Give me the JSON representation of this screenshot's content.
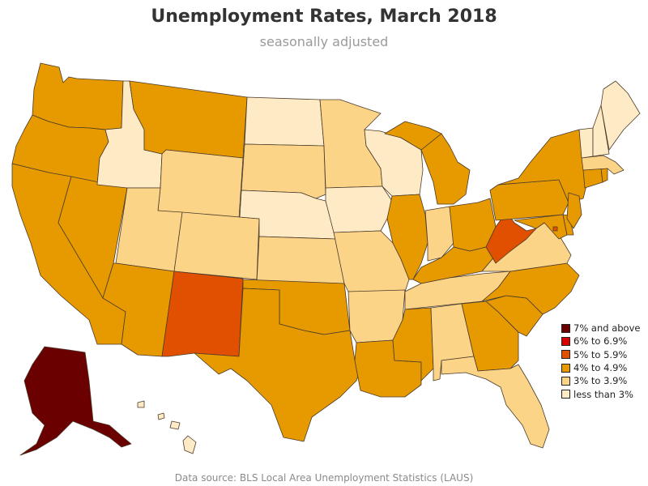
{
  "header": {
    "title": "Unemployment Rates, March 2018",
    "subtitle": "seasonally adjusted"
  },
  "footer": {
    "source": "Data source: BLS Local Area Unemployment Statistics (LAUS)"
  },
  "legend": {
    "items": [
      {
        "label": "7% and above",
        "color": "#6b0000"
      },
      {
        "label": "6% to 6.9%",
        "color": "#d80000"
      },
      {
        "label": "5% to 5.9%",
        "color": "#e05000"
      },
      {
        "label": "4% to 4.9%",
        "color": "#e69a00"
      },
      {
        "label": "3% to 3.9%",
        "color": "#fcd488"
      },
      {
        "label": "less than 3%",
        "color": "#feeac4"
      }
    ]
  },
  "map": {
    "states": [
      {
        "name": "Washington",
        "class": "4% to 4.9%"
      },
      {
        "name": "Oregon",
        "class": "4% to 4.9%"
      },
      {
        "name": "California",
        "class": "4% to 4.9%"
      },
      {
        "name": "Nevada",
        "class": "4% to 4.9%"
      },
      {
        "name": "Idaho",
        "class": "less than 3%"
      },
      {
        "name": "Montana",
        "class": "4% to 4.9%"
      },
      {
        "name": "Wyoming",
        "class": "3% to 3.9%"
      },
      {
        "name": "Utah",
        "class": "3% to 3.9%"
      },
      {
        "name": "Arizona",
        "class": "4% to 4.9%"
      },
      {
        "name": "Colorado",
        "class": "3% to 3.9%"
      },
      {
        "name": "New Mexico",
        "class": "5% to 5.9%"
      },
      {
        "name": "North Dakota",
        "class": "less than 3%"
      },
      {
        "name": "South Dakota",
        "class": "3% to 3.9%"
      },
      {
        "name": "Nebraska",
        "class": "less than 3%"
      },
      {
        "name": "Kansas",
        "class": "3% to 3.9%"
      },
      {
        "name": "Oklahoma",
        "class": "4% to 4.9%"
      },
      {
        "name": "Texas",
        "class": "4% to 4.9%"
      },
      {
        "name": "Minnesota",
        "class": "3% to 3.9%"
      },
      {
        "name": "Iowa",
        "class": "less than 3%"
      },
      {
        "name": "Missouri",
        "class": "3% to 3.9%"
      },
      {
        "name": "Arkansas",
        "class": "3% to 3.9%"
      },
      {
        "name": "Louisiana",
        "class": "4% to 4.9%"
      },
      {
        "name": "Wisconsin",
        "class": "less than 3%"
      },
      {
        "name": "Illinois",
        "class": "4% to 4.9%"
      },
      {
        "name": "Michigan",
        "class": "4% to 4.9%"
      },
      {
        "name": "Indiana",
        "class": "3% to 3.9%"
      },
      {
        "name": "Ohio",
        "class": "4% to 4.9%"
      },
      {
        "name": "Kentucky",
        "class": "4% to 4.9%"
      },
      {
        "name": "Tennessee",
        "class": "3% to 3.9%"
      },
      {
        "name": "Mississippi",
        "class": "4% to 4.9%"
      },
      {
        "name": "Alabama",
        "class": "3% to 3.9%"
      },
      {
        "name": "Georgia",
        "class": "4% to 4.9%"
      },
      {
        "name": "Florida",
        "class": "3% to 3.9%"
      },
      {
        "name": "South Carolina",
        "class": "4% to 4.9%"
      },
      {
        "name": "North Carolina",
        "class": "4% to 4.9%"
      },
      {
        "name": "Virginia",
        "class": "3% to 3.9%"
      },
      {
        "name": "West Virginia",
        "class": "5% to 5.9%"
      },
      {
        "name": "Pennsylvania",
        "class": "4% to 4.9%"
      },
      {
        "name": "New York",
        "class": "4% to 4.9%"
      },
      {
        "name": "Maryland",
        "class": "4% to 4.9%"
      },
      {
        "name": "Delaware",
        "class": "4% to 4.9%"
      },
      {
        "name": "New Jersey",
        "class": "4% to 4.9%"
      },
      {
        "name": "Connecticut",
        "class": "4% to 4.9%"
      },
      {
        "name": "Rhode Island",
        "class": "4% to 4.9%"
      },
      {
        "name": "Massachusetts",
        "class": "3% to 3.9%"
      },
      {
        "name": "Vermont",
        "class": "less than 3%"
      },
      {
        "name": "New Hampshire",
        "class": "less than 3%"
      },
      {
        "name": "Maine",
        "class": "less than 3%"
      },
      {
        "name": "Alaska",
        "class": "7% and above"
      },
      {
        "name": "Hawaii",
        "class": "less than 3%"
      },
      {
        "name": "District of Columbia",
        "class": "5% to 5.9%"
      }
    ]
  }
}
